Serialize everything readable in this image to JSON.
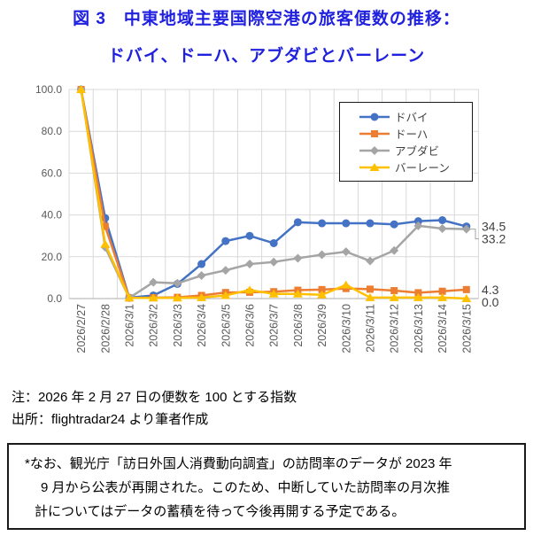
{
  "title": {
    "line1": "図 3　中東地域主要国際空港の旅客便数の推移：",
    "line2": "ドバイ、ドーハ、アブダビとバーレーン"
  },
  "chart_data": {
    "type": "line",
    "x": [
      "2026/2/27",
      "2026/2/28",
      "2026/3/1",
      "2026/3/2",
      "2026/3/3",
      "2026/3/4",
      "2026/3/5",
      "2026/3/6",
      "2026/3/7",
      "2026/3/8",
      "2026/3/9",
      "2026/3/10",
      "2026/3/11",
      "2026/3/12",
      "2026/3/13",
      "2026/3/14",
      "2026/3/15"
    ],
    "ylim": [
      0,
      100
    ],
    "yticks": [
      "100.0",
      "80.0",
      "60.0",
      "40.0",
      "20.0",
      "0.0"
    ],
    "grid": true,
    "legend_position": "top-right",
    "series": [
      {
        "name": "ドバイ",
        "color": "#4472C4",
        "marker": "circle",
        "end_label": "34.5",
        "values": [
          100,
          38.5,
          0.4,
          1.5,
          7,
          16.5,
          27.5,
          30,
          26.5,
          36.5,
          36,
          36,
          36,
          35.5,
          37,
          37.5,
          34.5
        ]
      },
      {
        "name": "ドーハ",
        "color": "#ED7D31",
        "marker": "square",
        "end_label": "4.3",
        "values": [
          100,
          34.5,
          0.3,
          0.4,
          0.6,
          1.5,
          2.9,
          3,
          3.3,
          4,
          4.3,
          4.8,
          4.5,
          3.8,
          2.8,
          3.5,
          4.3
        ]
      },
      {
        "name": "アブダビ",
        "color": "#A5A5A5",
        "marker": "diamond",
        "end_label": "33.2",
        "values": [
          100,
          24.5,
          0.3,
          7.8,
          7.3,
          11,
          13.5,
          16.5,
          17.5,
          19.3,
          21,
          22.4,
          18,
          23,
          34.8,
          33.5,
          33.2
        ]
      },
      {
        "name": "バーレーン",
        "color": "#FFC000",
        "marker": "triangle",
        "end_label": "0.0",
        "values": [
          100,
          26,
          0.3,
          0.3,
          0.3,
          0.5,
          1.5,
          4.1,
          2.2,
          2.2,
          1.8,
          6.5,
          0.5,
          0.5,
          0.5,
          0.5,
          0
        ]
      }
    ]
  },
  "notes": {
    "note": "注：2026 年 2 月 27 日の便数を 100 とする指数",
    "source": "出所：flightradar24 より筆者作成"
  },
  "footnote_box": {
    "lines": [
      "*なお、観光庁「訪日外国人消費動向調査」の訪問率のデータが 2023 年",
      "9 月から公表が再開された。このため、中断していた訪問率の月次推",
      "計についてはデータの蓄積を待って今後再開する予定である。"
    ]
  },
  "colors": {
    "title_blue": "#2020df",
    "grid": "#D9D9D9",
    "axis": "#ADADAD",
    "tick_label": "#595959",
    "end_label": "#404040"
  }
}
